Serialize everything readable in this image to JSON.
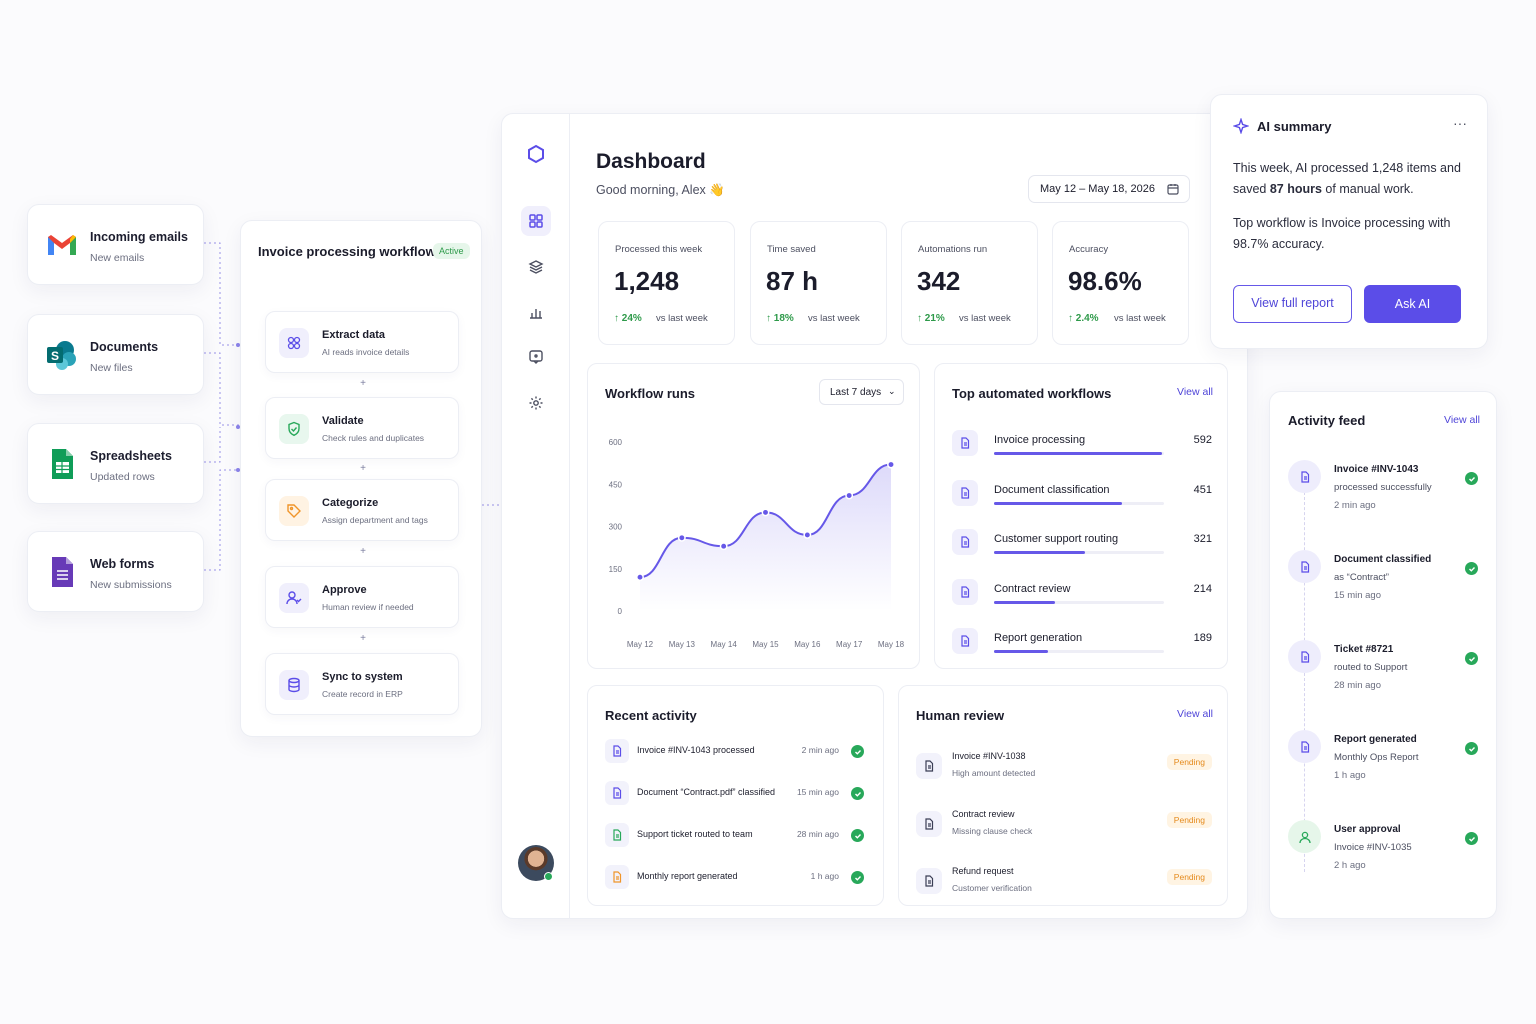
{
  "sources": [
    {
      "title": "Incoming emails",
      "subtitle": "New emails",
      "icon": "gmail-icon"
    },
    {
      "title": "Documents",
      "subtitle": "New files",
      "icon": "sharepoint-icon"
    },
    {
      "title": "Spreadsheets",
      "subtitle": "Updated rows",
      "icon": "sheets-icon"
    },
    {
      "title": "Web forms",
      "subtitle": "New submissions",
      "icon": "forms-icon"
    }
  ],
  "workflow": {
    "title": "Invoice processing workflow",
    "badge": "Active",
    "steps": [
      {
        "title": "Extract data",
        "subtitle": "AI reads invoice details",
        "icon": "extract-icon"
      },
      {
        "title": "Validate",
        "subtitle": "Check rules and duplicates",
        "icon": "shield-check-icon"
      },
      {
        "title": "Categorize",
        "subtitle": "Assign department and tags",
        "icon": "tag-icon"
      },
      {
        "title": "Approve",
        "subtitle": "Human review if needed",
        "icon": "user-check-icon"
      },
      {
        "title": "Sync to system",
        "subtitle": "Create record in ERP",
        "icon": "database-icon"
      }
    ],
    "connector_symbol": "+"
  },
  "dashboard": {
    "title": "Dashboard",
    "greeting": "Good morning, Alex 👋",
    "date_range": "May 12 – May 18, 2026",
    "kpis": [
      {
        "label": "Processed this week",
        "value": "1,248",
        "delta": "24%",
        "compare": "vs last week"
      },
      {
        "label": "Time saved",
        "value": "87 h",
        "delta": "18%",
        "compare": "vs last week"
      },
      {
        "label": "Automations run",
        "value": "342",
        "delta": "21%",
        "compare": "vs last week"
      },
      {
        "label": "Accuracy",
        "value": "98.6%",
        "delta": "2.4%",
        "compare": "vs last week"
      }
    ],
    "workflow_runs": {
      "title": "Workflow runs",
      "range_select": "Last 7 days"
    },
    "top_workflows": {
      "title": "Top automated workflows",
      "view_all": "View all",
      "items": [
        {
          "name": "Invoice processing",
          "value": 592
        },
        {
          "name": "Document classification",
          "value": 451
        },
        {
          "name": "Customer support routing",
          "value": 321
        },
        {
          "name": "Contract review",
          "value": 214
        },
        {
          "name": "Report generation",
          "value": 189
        }
      ]
    },
    "recent_activity": {
      "title": "Recent activity",
      "items": [
        {
          "text": "Invoice #INV-1043 processed",
          "time": "2 min ago"
        },
        {
          "text": "Document “Contract.pdf” classified",
          "time": "15 min ago"
        },
        {
          "text": "Support ticket routed to team",
          "time": "28 min ago"
        },
        {
          "text": "Monthly report generated",
          "time": "1 h ago"
        }
      ]
    },
    "human_review": {
      "title": "Human review",
      "view_all": "View all",
      "items": [
        {
          "title": "Invoice #INV-1038",
          "subtitle": "High amount detected",
          "status": "Pending"
        },
        {
          "title": "Contract review",
          "subtitle": "Missing clause check",
          "status": "Pending"
        },
        {
          "title": "Refund request",
          "subtitle": "Customer verification",
          "status": "Pending"
        }
      ]
    }
  },
  "chart_data": {
    "type": "area",
    "title": "Workflow runs",
    "x": [
      "May 12",
      "May 13",
      "May 14",
      "May 15",
      "May 16",
      "May 17",
      "May 18"
    ],
    "y_ticks": [
      0,
      150,
      300,
      450,
      600
    ],
    "ylim": [
      0,
      600
    ],
    "values": [
      120,
      260,
      230,
      350,
      270,
      410,
      520
    ],
    "color": "#6658e8"
  },
  "ai_summary": {
    "title": "AI summary",
    "line1_pre": "This week, AI processed 1,248 items and saved ",
    "line1_bold": "87 hours",
    "line1_post": " of manual work.",
    "line2": "Top workflow is Invoice processing with 98.7% accuracy.",
    "view_report": "View full report",
    "ask_ai": "Ask AI"
  },
  "activity_feed": {
    "title": "Activity feed",
    "view_all": "View all",
    "items": [
      {
        "title": "Invoice #INV-1043",
        "detail": "processed successfully",
        "time": "2 min ago"
      },
      {
        "title": "Document classified",
        "detail": "as “Contract”",
        "time": "15 min ago"
      },
      {
        "title": "Ticket #8721",
        "detail": "routed to Support",
        "time": "28 min ago"
      },
      {
        "title": "Report generated",
        "detail": "Monthly Ops Report",
        "time": "1 h ago"
      },
      {
        "title": "User approval",
        "detail": "Invoice #INV-1035",
        "time": "2 h ago"
      }
    ]
  },
  "colors": {
    "accent": "#5b4de8",
    "success": "#28a85a",
    "pending": "#e58a1c"
  }
}
